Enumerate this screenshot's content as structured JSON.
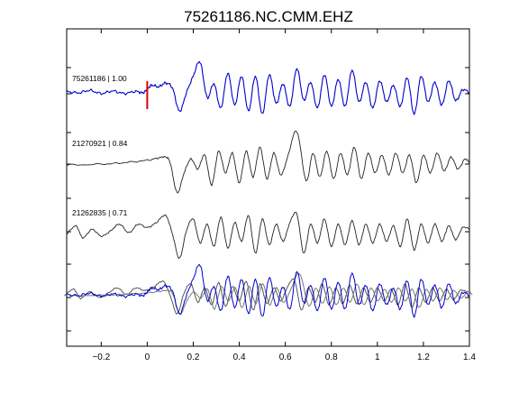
{
  "chart_data": {
    "type": "line",
    "title": "75261186.NC.CMM.EHZ",
    "xlabel": "",
    "ylabel": "",
    "xlim": [
      -0.35,
      1.4
    ],
    "x_ticks": [
      -0.2,
      0,
      0.2,
      0.4,
      0.6,
      0.8,
      1,
      1.2,
      1.4
    ],
    "x_tick_labels": [
      "−0.2",
      "0",
      "0.2",
      "0.4",
      "0.6",
      "0.8",
      "1",
      "1.2",
      "1.4"
    ],
    "grid": false,
    "pick_marker": {
      "x": 0,
      "color": "#e00000"
    },
    "traces": [
      {
        "label": "75261186 | 1.00",
        "color": "#0000cc",
        "lane": 0,
        "keypoints": [
          [
            -0.35,
            0.05
          ],
          [
            -0.3,
            0.0
          ],
          [
            -0.25,
            0.08
          ],
          [
            -0.2,
            -0.02
          ],
          [
            -0.15,
            0.06
          ],
          [
            -0.1,
            -0.02
          ],
          [
            -0.05,
            0.05
          ],
          [
            -0.02,
            0.0
          ],
          [
            0.0,
            0.12
          ],
          [
            0.02,
            0.25
          ],
          [
            0.05,
            0.2
          ],
          [
            0.08,
            0.32
          ],
          [
            0.11,
            0.15
          ],
          [
            0.14,
            -0.6
          ],
          [
            0.17,
            0.0
          ],
          [
            0.2,
            0.55
          ],
          [
            0.23,
            1.0
          ],
          [
            0.26,
            -0.15
          ],
          [
            0.29,
            0.3
          ],
          [
            0.32,
            -0.5
          ],
          [
            0.35,
            0.65
          ],
          [
            0.38,
            -0.4
          ],
          [
            0.41,
            0.55
          ],
          [
            0.44,
            -0.6
          ],
          [
            0.47,
            0.55
          ],
          [
            0.5,
            -0.7
          ],
          [
            0.53,
            0.6
          ],
          [
            0.56,
            -0.35
          ],
          [
            0.59,
            0.3
          ],
          [
            0.62,
            -0.45
          ],
          [
            0.65,
            0.8
          ],
          [
            0.68,
            -0.25
          ],
          [
            0.71,
            0.35
          ],
          [
            0.74,
            -0.5
          ],
          [
            0.77,
            0.6
          ],
          [
            0.8,
            -0.45
          ],
          [
            0.83,
            0.45
          ],
          [
            0.86,
            -0.45
          ],
          [
            0.89,
            0.75
          ],
          [
            0.92,
            -0.3
          ],
          [
            0.95,
            0.35
          ],
          [
            0.98,
            -0.5
          ],
          [
            1.01,
            0.4
          ],
          [
            1.04,
            -0.3
          ],
          [
            1.07,
            0.25
          ],
          [
            1.1,
            -0.45
          ],
          [
            1.13,
            0.5
          ],
          [
            1.16,
            -0.7
          ],
          [
            1.19,
            0.55
          ],
          [
            1.22,
            -0.3
          ],
          [
            1.25,
            0.35
          ],
          [
            1.28,
            -0.4
          ],
          [
            1.31,
            0.4
          ],
          [
            1.34,
            -0.25
          ],
          [
            1.37,
            0.1
          ],
          [
            1.4,
            0.0
          ]
        ]
      },
      {
        "label": "21270921 | 0.84",
        "color": "#222222",
        "lane": 1,
        "keypoints": [
          [
            -0.35,
            0.0
          ],
          [
            -0.2,
            0.02
          ],
          [
            -0.1,
            0.06
          ],
          [
            0.0,
            0.12
          ],
          [
            0.05,
            0.18
          ],
          [
            0.08,
            0.2
          ],
          [
            0.1,
            0.05
          ],
          [
            0.13,
            -0.7
          ],
          [
            0.16,
            -0.2
          ],
          [
            0.19,
            0.15
          ],
          [
            0.22,
            -0.1
          ],
          [
            0.25,
            0.25
          ],
          [
            0.28,
            -0.5
          ],
          [
            0.31,
            0.35
          ],
          [
            0.34,
            -0.2
          ],
          [
            0.37,
            0.3
          ],
          [
            0.4,
            -0.45
          ],
          [
            0.43,
            0.35
          ],
          [
            0.46,
            -0.3
          ],
          [
            0.49,
            0.45
          ],
          [
            0.52,
            -0.35
          ],
          [
            0.55,
            0.3
          ],
          [
            0.58,
            -0.25
          ],
          [
            0.61,
            0.2
          ],
          [
            0.65,
            0.85
          ],
          [
            0.69,
            -0.4
          ],
          [
            0.72,
            0.3
          ],
          [
            0.75,
            -0.3
          ],
          [
            0.78,
            0.35
          ],
          [
            0.81,
            -0.35
          ],
          [
            0.84,
            0.3
          ],
          [
            0.87,
            -0.25
          ],
          [
            0.9,
            0.45
          ],
          [
            0.93,
            -0.35
          ],
          [
            0.96,
            0.3
          ],
          [
            0.99,
            -0.2
          ],
          [
            1.02,
            0.25
          ],
          [
            1.05,
            -0.25
          ],
          [
            1.08,
            0.3
          ],
          [
            1.11,
            -0.2
          ],
          [
            1.14,
            0.25
          ],
          [
            1.17,
            -0.45
          ],
          [
            1.2,
            0.25
          ],
          [
            1.23,
            -0.2
          ],
          [
            1.26,
            0.3
          ],
          [
            1.29,
            -0.15
          ],
          [
            1.32,
            0.2
          ],
          [
            1.35,
            -0.1
          ],
          [
            1.38,
            0.15
          ],
          [
            1.4,
            0.05
          ]
        ]
      },
      {
        "label": "21262835 | 0.71",
        "color": "#222222",
        "lane": 2,
        "keypoints": [
          [
            -0.35,
            0.0
          ],
          [
            -0.31,
            0.25
          ],
          [
            -0.28,
            -0.1
          ],
          [
            -0.24,
            0.15
          ],
          [
            -0.2,
            -0.05
          ],
          [
            -0.16,
            0.1
          ],
          [
            -0.12,
            0.3
          ],
          [
            -0.08,
            0.05
          ],
          [
            -0.04,
            0.3
          ],
          [
            0.0,
            0.2
          ],
          [
            0.04,
            0.35
          ],
          [
            0.08,
            0.55
          ],
          [
            0.11,
            0.0
          ],
          [
            0.14,
            -0.7
          ],
          [
            0.17,
            0.1
          ],
          [
            0.2,
            0.45
          ],
          [
            0.23,
            -0.25
          ],
          [
            0.26,
            0.3
          ],
          [
            0.29,
            -0.35
          ],
          [
            0.32,
            0.5
          ],
          [
            0.35,
            -0.4
          ],
          [
            0.38,
            0.35
          ],
          [
            0.41,
            -0.2
          ],
          [
            0.44,
            0.55
          ],
          [
            0.47,
            -0.55
          ],
          [
            0.5,
            0.45
          ],
          [
            0.53,
            -0.3
          ],
          [
            0.56,
            0.3
          ],
          [
            0.59,
            -0.2
          ],
          [
            0.62,
            0.35
          ],
          [
            0.65,
            0.6
          ],
          [
            0.68,
            -0.55
          ],
          [
            0.71,
            0.3
          ],
          [
            0.74,
            -0.25
          ],
          [
            0.77,
            0.45
          ],
          [
            0.8,
            -0.35
          ],
          [
            0.83,
            0.3
          ],
          [
            0.86,
            -0.3
          ],
          [
            0.89,
            0.4
          ],
          [
            0.92,
            -0.3
          ],
          [
            0.95,
            0.3
          ],
          [
            0.98,
            -0.25
          ],
          [
            1.01,
            0.3
          ],
          [
            1.04,
            -0.2
          ],
          [
            1.07,
            0.25
          ],
          [
            1.1,
            -0.35
          ],
          [
            1.13,
            0.45
          ],
          [
            1.16,
            -0.45
          ],
          [
            1.19,
            0.3
          ],
          [
            1.22,
            -0.25
          ],
          [
            1.25,
            0.3
          ],
          [
            1.28,
            -0.2
          ],
          [
            1.31,
            0.25
          ],
          [
            1.34,
            -0.15
          ],
          [
            1.37,
            0.2
          ],
          [
            1.4,
            0.15
          ]
        ]
      }
    ],
    "overlay": {
      "lane": 3,
      "note_overlay_members": [
        0,
        1,
        2
      ]
    }
  }
}
